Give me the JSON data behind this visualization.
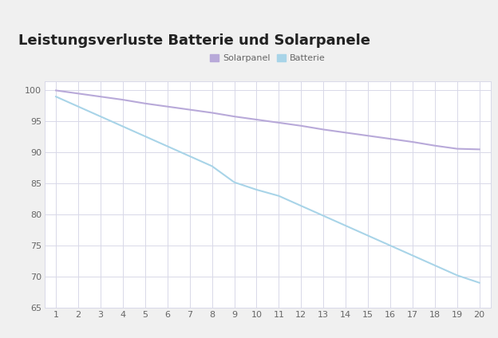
{
  "title": "Leistungsverluste Batterie und Solarpanele",
  "x": [
    1,
    2,
    3,
    4,
    5,
    6,
    7,
    8,
    9,
    10,
    11,
    12,
    13,
    14,
    15,
    16,
    17,
    18,
    19,
    20
  ],
  "solarpanel": [
    100.0,
    99.5,
    99.0,
    98.5,
    97.9,
    97.4,
    96.9,
    96.4,
    95.8,
    95.3,
    94.8,
    94.3,
    93.7,
    93.2,
    92.7,
    92.2,
    91.7,
    91.1,
    90.6,
    90.5
  ],
  "batterie": [
    99.0,
    97.4,
    95.8,
    94.2,
    92.6,
    91.0,
    89.4,
    87.8,
    85.2,
    84.0,
    83.0,
    81.4,
    79.8,
    78.2,
    76.6,
    75.0,
    73.4,
    71.8,
    70.2,
    69.0
  ],
  "solarpanel_color": "#b8a9d9",
  "batterie_color": "#a8d4e8",
  "bg_color": "#f0f0f0",
  "plot_bg_color": "#ffffff",
  "title_bg_color": "#f0f0f0",
  "grid_color": "#d8d8e8",
  "title_color": "#222222",
  "accent_color": "#5cb85c",
  "sep_line_color": "#c0c0c0",
  "ylim": [
    65,
    101.5
  ],
  "yticks": [
    65,
    70,
    75,
    80,
    85,
    90,
    95,
    100
  ],
  "xlim": [
    0.5,
    20.5
  ],
  "xticks": [
    1,
    2,
    3,
    4,
    5,
    6,
    7,
    8,
    9,
    10,
    11,
    12,
    13,
    14,
    15,
    16,
    17,
    18,
    19,
    20
  ],
  "legend_solarpanel": "Solarpanel",
  "legend_batterie": "Batterie",
  "title_fontsize": 13,
  "tick_fontsize": 8,
  "legend_fontsize": 8,
  "tick_color": "#666666"
}
